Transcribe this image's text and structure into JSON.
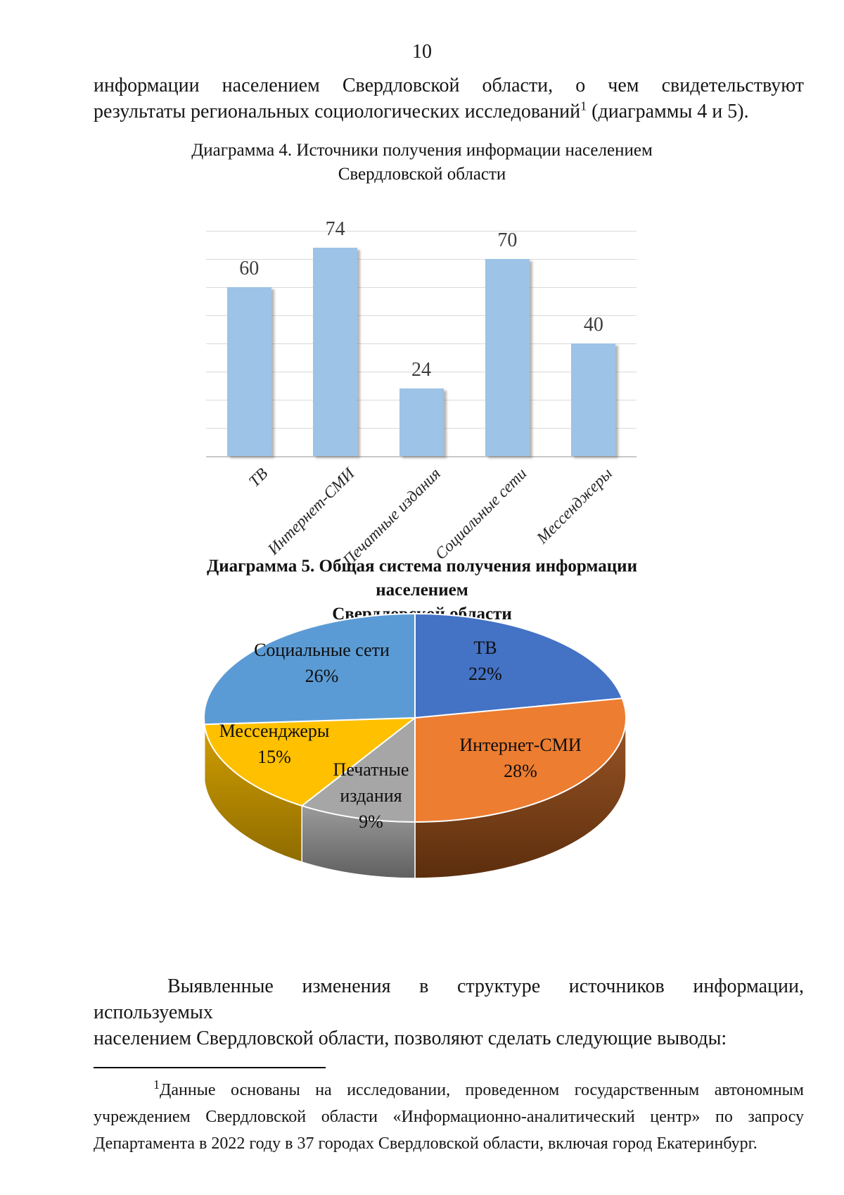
{
  "page_number": "10",
  "paragraph1": {
    "line1": "информации населением Свердловской области, о чем свидетельствуют",
    "line2_before_sup": "результаты региональных социологических исследований",
    "sup": "1",
    "line2_after_sup": " (диаграммы 4 и 5)."
  },
  "chart_data": [
    {
      "type": "bar",
      "title": "Диаграмма 4. Источники получения информации населением",
      "title_line2": "Свердловской области",
      "categories": [
        "ТВ",
        "Интернет-СМИ",
        "Печатные издания",
        "Социальные сети",
        "Мессенджеры"
      ],
      "values": [
        60,
        74,
        24,
        70,
        40
      ],
      "xlabel": "",
      "ylabel": "",
      "ylim": [
        0,
        80
      ],
      "gridline_step": 10,
      "grid": true,
      "legend": false,
      "bar_color": "#9DC3E6",
      "gridline_color": "#DADADA",
      "value_label_color": "#3d3d3d"
    },
    {
      "type": "pie",
      "title": "Диаграмма 5. Общая система получения информации населением",
      "title_line2": "Свердловской области",
      "effect": "3d",
      "start_angle_deg": 0,
      "direction": "clockwise",
      "slices": [
        {
          "label": "ТВ",
          "value": 22,
          "pct": "22%",
          "color": "#4472C4",
          "wall_top": "#3A62A8",
          "wall_bottom": "#2B4A82"
        },
        {
          "label": "Интернет-СМИ",
          "value": 28,
          "pct": "28%",
          "color": "#ED7D31",
          "wall_top": "#9A5526",
          "wall_bottom": "#5C2E0D"
        },
        {
          "label": "Печатные издания",
          "value": 9,
          "pct": "9%",
          "color": "#A6A6A6",
          "wall_top": "#9B9B9B",
          "wall_bottom": "#606060"
        },
        {
          "label": "Мессенджеры",
          "value": 15,
          "pct": "15%",
          "color": "#FFC000",
          "wall_top": "#D19E00",
          "wall_bottom": "#8F6C00"
        },
        {
          "label": "Социальные сети",
          "value": 26,
          "pct": "26%",
          "color": "#5B9BD5",
          "wall_top": "#4A7FB5",
          "wall_bottom": "#38618C"
        }
      ]
    }
  ],
  "paragraph2": {
    "line1": "Выявленные изменения в структуре источников информации, используемых",
    "line2": "населением Свердловской области, позволяют сделать следующие выводы:"
  },
  "footnote": {
    "sup": "1",
    "line1": "Данные основаны на исследовании, проведенном государственным автономным",
    "line2": "учреждением Свердловской области «Информационно-аналитический центр» по запросу",
    "line3": "Департамента в 2022 году в 37 городах Свердловской области, включая город Екатеринбург."
  }
}
